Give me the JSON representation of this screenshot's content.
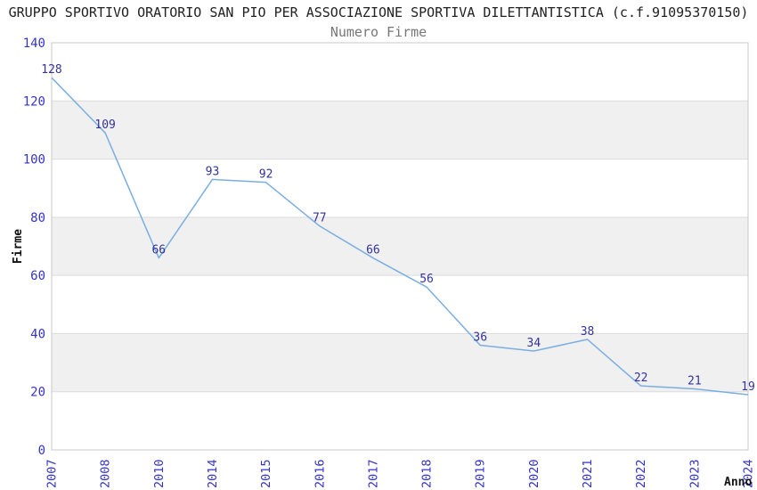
{
  "chart_data": {
    "type": "line",
    "title": "GRUPPO SPORTIVO ORATORIO SAN PIO PER ASSOCIAZIONE SPORTIVA DILETTANTISTICA (c.f.91095370150)",
    "subtitle": "Numero Firme",
    "xlabel": "Anno",
    "ylabel": "Firme",
    "categories": [
      "2007",
      "2008",
      "2010",
      "2014",
      "2015",
      "2016",
      "2017",
      "2018",
      "2019",
      "2020",
      "2021",
      "2022",
      "2023",
      "2024"
    ],
    "values": [
      128,
      109,
      66,
      93,
      92,
      77,
      66,
      56,
      36,
      34,
      38,
      22,
      21,
      19
    ],
    "ylim": [
      0,
      140
    ],
    "yticks": [
      0,
      20,
      40,
      60,
      80,
      100,
      120,
      140
    ],
    "band_ranges": [
      [
        20,
        40
      ],
      [
        60,
        80
      ],
      [
        100,
        120
      ]
    ],
    "grid": "alternating-horizontal-bands",
    "legend": "none",
    "colors": {
      "line": "#7aaee3",
      "point_label": "#333399",
      "tick_label": "#3333cc",
      "band_fill": "#f0f0f0",
      "grid_line": "#dcdcdc",
      "plot_border": "#c8c8c8",
      "title": "#222222",
      "subtitle": "#777777",
      "axis_label": "#111111",
      "background": "#ffffff"
    }
  }
}
